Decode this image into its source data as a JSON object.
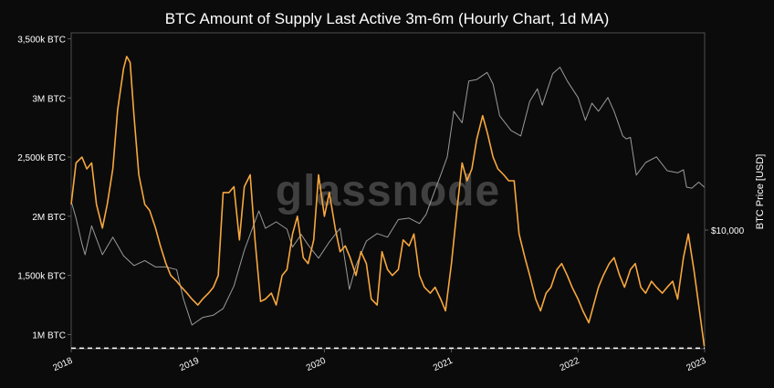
{
  "chart_data": {
    "type": "line",
    "title": "BTC Amount of Supply Last Active 3m-6m (Hourly Chart, 1d MA)",
    "watermark": "glassnode",
    "x_ticks": [
      "2018",
      "2019",
      "2020",
      "2021",
      "2022",
      "2023"
    ],
    "xlim": [
      "2018-01-01",
      "2023-01-01"
    ],
    "y_left": {
      "ticks": [
        {
          "value": 1000000,
          "label": "1M BTC"
        },
        {
          "value": 1500000,
          "label": "1,500k BTC"
        },
        {
          "value": 2000000,
          "label": "2M BTC"
        },
        {
          "value": 2500000,
          "label": "2,500k BTC"
        },
        {
          "value": 3000000,
          "label": "3M BTC"
        },
        {
          "value": 3500000,
          "label": "3,500k BTC"
        }
      ],
      "ylim": [
        880000,
        3550000
      ]
    },
    "y_right": {
      "label": "BTC Price [USD]",
      "scale": "log",
      "ticks": [
        {
          "value": 10000,
          "label": "$10,000"
        }
      ],
      "ylim": [
        2500,
        100000
      ]
    },
    "reference_line": {
      "value": 885000,
      "style": "dashed"
    },
    "colors": {
      "supply": "#f7a73e",
      "price": "#9a9a9a",
      "background": "#0b0b0b",
      "text": "#ffffff",
      "axis": "#5a5a5a",
      "reference": "#ffffff"
    },
    "series": [
      {
        "axis": "left",
        "x": [
          "2018-01-01",
          "2018-01-15",
          "2018-02-01",
          "2018-02-15",
          "2018-03-01",
          "2018-03-15",
          "2018-04-01",
          "2018-04-15",
          "2018-05-01",
          "2018-05-15",
          "2018-06-01",
          "2018-06-10",
          "2018-06-20",
          "2018-07-01",
          "2018-07-15",
          "2018-08-01",
          "2018-08-15",
          "2018-09-01",
          "2018-09-15",
          "2018-10-01",
          "2018-10-15",
          "2018-11-01",
          "2018-11-15",
          "2018-12-01",
          "2018-12-15",
          "2019-01-01",
          "2019-01-15",
          "2019-02-01",
          "2019-02-15",
          "2019-03-01",
          "2019-03-15",
          "2019-04-01",
          "2019-04-15",
          "2019-05-01",
          "2019-05-15",
          "2019-06-01",
          "2019-06-15",
          "2019-07-01",
          "2019-07-15",
          "2019-08-01",
          "2019-08-15",
          "2019-09-01",
          "2019-09-15",
          "2019-10-01",
          "2019-10-15",
          "2019-11-01",
          "2019-11-15",
          "2019-12-01",
          "2019-12-15",
          "2020-01-01",
          "2020-01-15",
          "2020-02-01",
          "2020-02-15",
          "2020-03-01",
          "2020-03-15",
          "2020-04-01",
          "2020-04-15",
          "2020-05-01",
          "2020-05-15",
          "2020-06-01",
          "2020-06-15",
          "2020-07-01",
          "2020-07-15",
          "2020-08-01",
          "2020-08-15",
          "2020-09-01",
          "2020-09-15",
          "2020-10-01",
          "2020-10-15",
          "2020-11-01",
          "2020-11-15",
          "2020-12-01",
          "2020-12-15",
          "2021-01-01",
          "2021-01-15",
          "2021-02-01",
          "2021-02-15",
          "2021-03-01",
          "2021-03-15",
          "2021-04-01",
          "2021-04-15",
          "2021-05-01",
          "2021-05-15",
          "2021-06-01",
          "2021-06-15",
          "2021-07-01",
          "2021-07-15",
          "2021-08-01",
          "2021-08-15",
          "2021-09-01",
          "2021-09-15",
          "2021-10-01",
          "2021-10-15",
          "2021-11-01",
          "2021-11-15",
          "2021-12-01",
          "2021-12-15",
          "2022-01-01",
          "2022-01-15",
          "2022-02-01",
          "2022-02-15",
          "2022-03-01",
          "2022-03-15",
          "2022-04-01",
          "2022-04-15",
          "2022-05-01",
          "2022-05-15",
          "2022-06-01",
          "2022-06-15",
          "2022-07-01",
          "2022-07-15",
          "2022-08-01",
          "2022-08-15",
          "2022-09-01",
          "2022-09-15",
          "2022-10-01",
          "2022-10-15",
          "2022-11-01",
          "2022-11-15",
          "2022-12-01",
          "2022-12-15",
          "2022-12-31"
        ],
        "values": [
          2100000,
          2450000,
          2500000,
          2400000,
          2450000,
          2100000,
          1900000,
          2100000,
          2400000,
          2900000,
          3250000,
          3350000,
          3300000,
          2850000,
          2350000,
          2100000,
          2050000,
          1900000,
          1750000,
          1600000,
          1500000,
          1450000,
          1400000,
          1350000,
          1300000,
          1250000,
          1300000,
          1350000,
          1400000,
          1500000,
          2200000,
          2200000,
          2250000,
          1800000,
          2250000,
          2350000,
          1800000,
          1280000,
          1300000,
          1350000,
          1250000,
          1500000,
          1550000,
          1850000,
          2000000,
          1650000,
          1600000,
          1800000,
          2350000,
          2000000,
          2200000,
          1900000,
          1700000,
          1750000,
          1650000,
          1500000,
          1700000,
          1600000,
          1300000,
          1250000,
          1700000,
          1550000,
          1500000,
          1550000,
          1800000,
          1750000,
          1850000,
          1500000,
          1400000,
          1350000,
          1400000,
          1300000,
          1200000,
          1600000,
          2000000,
          2450000,
          2300000,
          2400000,
          2650000,
          2850000,
          2700000,
          2500000,
          2400000,
          2350000,
          2300000,
          2300000,
          1850000,
          1650000,
          1500000,
          1300000,
          1200000,
          1350000,
          1400000,
          1550000,
          1600000,
          1500000,
          1400000,
          1300000,
          1200000,
          1100000,
          1250000,
          1400000,
          1500000,
          1600000,
          1650000,
          1500000,
          1400000,
          1550000,
          1600000,
          1400000,
          1350000,
          1450000,
          1400000,
          1350000,
          1400000,
          1450000,
          1300000,
          1650000,
          1850000,
          1550000,
          1250000,
          900000
        ]
      },
      {
        "axis": "right",
        "x": [
          "2018-01-01",
          "2018-01-15",
          "2018-02-01",
          "2018-02-10",
          "2018-03-01",
          "2018-04-01",
          "2018-05-01",
          "2018-06-01",
          "2018-07-01",
          "2018-08-01",
          "2018-09-01",
          "2018-10-01",
          "2018-11-01",
          "2018-11-20",
          "2018-12-15",
          "2019-01-15",
          "2019-02-15",
          "2019-03-15",
          "2019-04-15",
          "2019-05-15",
          "2019-06-26",
          "2019-07-15",
          "2019-08-15",
          "2019-09-15",
          "2019-10-01",
          "2019-10-26",
          "2019-11-15",
          "2019-12-15",
          "2020-01-15",
          "2020-02-15",
          "2020-03-13",
          "2020-04-01",
          "2020-05-01",
          "2020-06-01",
          "2020-07-01",
          "2020-08-01",
          "2020-09-01",
          "2020-10-01",
          "2020-10-20",
          "2020-11-15",
          "2020-12-01",
          "2020-12-20",
          "2021-01-08",
          "2021-02-01",
          "2021-02-20",
          "2021-03-15",
          "2021-04-14",
          "2021-05-01",
          "2021-05-20",
          "2021-06-22",
          "2021-07-20",
          "2021-08-15",
          "2021-09-06",
          "2021-09-20",
          "2021-10-20",
          "2021-11-10",
          "2021-12-01",
          "2022-01-01",
          "2022-01-22",
          "2022-02-10",
          "2022-03-01",
          "2022-03-28",
          "2022-04-15",
          "2022-05-10",
          "2022-05-20",
          "2022-06-01",
          "2022-06-18",
          "2022-07-15",
          "2022-08-15",
          "2022-09-15",
          "2022-10-15",
          "2022-11-01",
          "2022-11-10",
          "2022-11-25",
          "2022-12-15",
          "2022-12-31"
        ],
        "values": [
          14000,
          11500,
          8500,
          7500,
          10500,
          7500,
          9200,
          7400,
          6600,
          7000,
          6500,
          6500,
          6300,
          4500,
          3300,
          3600,
          3700,
          4000,
          5200,
          7900,
          12500,
          10200,
          11000,
          10100,
          8200,
          9500,
          8400,
          7200,
          8700,
          10200,
          5000,
          6600,
          8800,
          9600,
          9200,
          11300,
          11500,
          10800,
          12000,
          16000,
          19000,
          23500,
          40000,
          35000,
          57000,
          58000,
          63000,
          55000,
          38000,
          32000,
          30000,
          45000,
          52000,
          43000,
          62000,
          67000,
          57000,
          47000,
          36000,
          44000,
          40000,
          47000,
          40000,
          30000,
          29000,
          29500,
          19000,
          22000,
          23500,
          20000,
          19500,
          20200,
          16500,
          16300,
          17500,
          16500
        ]
      }
    ]
  }
}
